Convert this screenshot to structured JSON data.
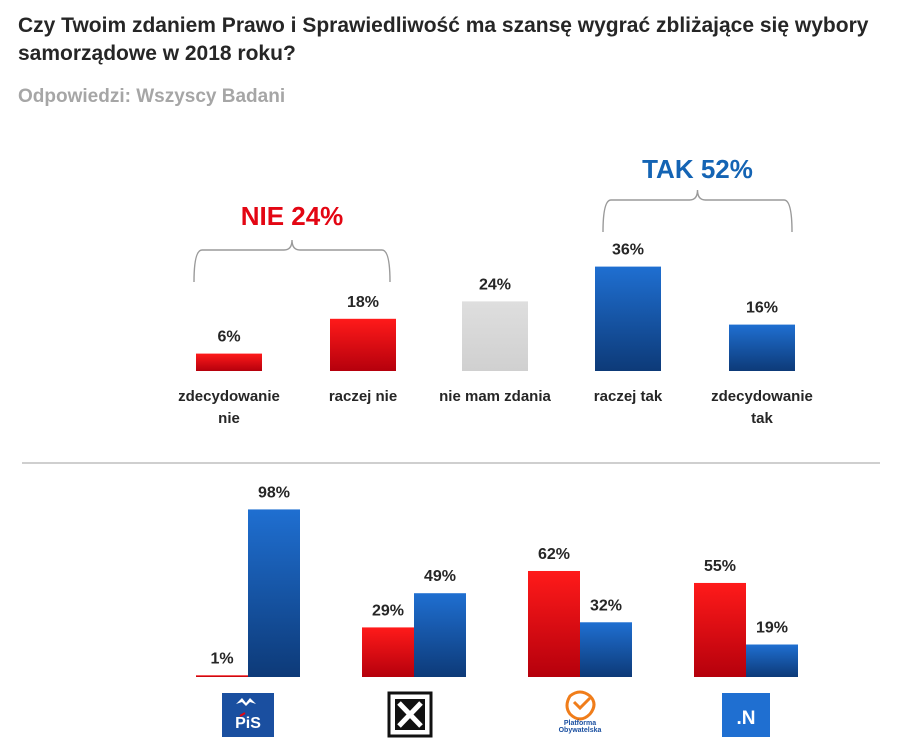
{
  "header": {
    "title": "Czy Twoim zdaniem Prawo i Sprawiedliwość ma szansę wygrać zbliżające się wybory samorządowe w 2018 roku?",
    "subtitle": "Odpowiedzi: Wszyscy Badani"
  },
  "colors": {
    "red": "#e30613",
    "blue": "#1f64b4",
    "gray": "#d9d9d9",
    "nie_group": "#e30613",
    "tak_group": "#1464b4"
  },
  "chart_data": [
    {
      "type": "bar",
      "title": "Czy Twoim zdaniem Prawo i Sprawiedliwość ma szansę wygrać zbliżające się wybory samorządowe w 2018 roku?",
      "categories": [
        "zdecydowanie nie",
        "raczej nie",
        "nie mam zdania",
        "raczej tak",
        "zdecydowanie tak"
      ],
      "category_lines": [
        [
          "zdecydowanie",
          "nie"
        ],
        [
          "raczej nie"
        ],
        [
          "nie mam zdania"
        ],
        [
          "raczej tak"
        ],
        [
          "zdecydowanie",
          "tak"
        ]
      ],
      "values": [
        6,
        18,
        24,
        36,
        16
      ],
      "value_labels": [
        "6%",
        "18%",
        "24%",
        "36%",
        "16%"
      ],
      "bar_colors": [
        "red",
        "red",
        "gray",
        "blue",
        "blue"
      ],
      "unit": "%",
      "groups": [
        {
          "label": "NIE 24%",
          "members": [
            0,
            1
          ],
          "color": "red"
        },
        {
          "label": "TAK 52%",
          "members": [
            3,
            4
          ],
          "color": "blue"
        }
      ]
    },
    {
      "type": "bar",
      "categories": [
        "PiS",
        "Kukiz'15",
        "Platforma Obywatelska",
        ".N"
      ],
      "series": [
        {
          "name": "NIE",
          "color": "red",
          "values": [
            1,
            29,
            62,
            55
          ],
          "labels": [
            "1%",
            "29%",
            "62%",
            "55%"
          ]
        },
        {
          "name": "TAK",
          "color": "blue",
          "values": [
            98,
            49,
            32,
            19
          ],
          "labels": [
            "98%",
            "49%",
            "32%",
            "19%"
          ]
        }
      ],
      "unit": "%",
      "logos": [
        {
          "icon": "pis-logo",
          "text": "PiS"
        },
        {
          "icon": "kukiz-logo",
          "text": ""
        },
        {
          "icon": "platforma-logo",
          "text_lines": [
            "Platforma",
            "Obywatelska"
          ]
        },
        {
          "icon": "nowoczesna-logo",
          "text": ".N"
        }
      ]
    }
  ]
}
